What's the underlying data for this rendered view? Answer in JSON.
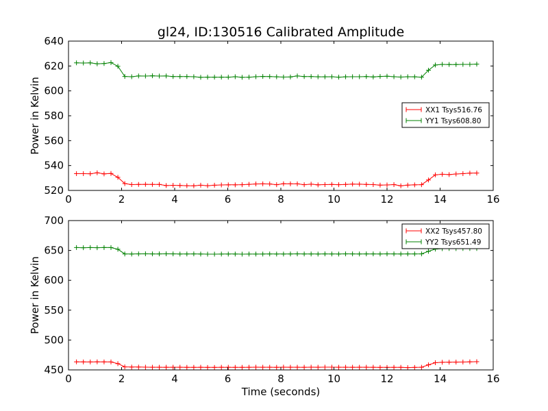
{
  "chart_data": {
    "type": "line",
    "title": "gl24, ID:130516 Calibrated Amplitude",
    "xlabel": "Time (seconds)",
    "x": [
      0.3,
      0.56,
      0.82,
      1.08,
      1.34,
      1.6,
      1.86,
      2.12,
      2.38,
      2.64,
      2.9,
      3.16,
      3.42,
      3.68,
      3.94,
      4.2,
      4.46,
      4.72,
      4.98,
      5.24,
      5.5,
      5.76,
      6.02,
      6.28,
      6.54,
      6.8,
      7.06,
      7.32,
      7.58,
      7.84,
      8.1,
      8.36,
      8.62,
      8.88,
      9.14,
      9.4,
      9.66,
      9.92,
      10.18,
      10.44,
      10.7,
      10.96,
      11.22,
      11.48,
      11.74,
      12.0,
      12.26,
      12.52,
      12.78,
      13.04,
      13.3,
      13.56,
      13.82,
      14.08,
      14.34,
      14.6,
      14.86,
      15.12,
      15.38
    ],
    "panels": [
      {
        "ylabel": "Power in Kelvin",
        "xlim": [
          0,
          16
        ],
        "ylim": [
          520,
          640
        ],
        "xticks": [
          0,
          2,
          4,
          6,
          8,
          10,
          12,
          14,
          16
        ],
        "yticks": [
          520,
          540,
          560,
          580,
          600,
          620,
          640
        ],
        "legend_position": "center-right",
        "series": [
          {
            "name": "XX1 Tsys516.76",
            "color": "#ff0000",
            "values": [
              533.5,
              533.5,
              533.4,
              534.2,
              533.3,
              533.6,
              530.5,
              525.5,
              524.7,
              524.8,
              524.9,
              524.8,
              524.8,
              523.9,
              524.1,
              524.0,
              523.8,
              523.7,
              524.2,
              523.8,
              524.2,
              524.4,
              524.5,
              524.5,
              524.6,
              524.9,
              525.2,
              525.3,
              525.2,
              524.6,
              525.4,
              525.3,
              525.3,
              524.6,
              525.0,
              524.5,
              524.7,
              524.8,
              524.6,
              524.8,
              525.1,
              525.0,
              524.8,
              524.7,
              524.3,
              524.4,
              524.7,
              523.7,
              524.3,
              524.5,
              524.6,
              528.4,
              532.5,
              533.0,
              532.7,
              533.2,
              533.5,
              533.9,
              534.0
            ]
          },
          {
            "name": "YY1 Tsys608.80",
            "color": "#008000",
            "values": [
              622.5,
              622.4,
              622.5,
              621.8,
              622.0,
              622.7,
              619.8,
              611.6,
              611.4,
              612.0,
              611.9,
              612.1,
              611.9,
              612.0,
              611.5,
              611.5,
              611.5,
              611.4,
              610.9,
              611.0,
              611.0,
              611.0,
              611.0,
              611.4,
              610.9,
              611.0,
              611.4,
              611.6,
              611.5,
              611.3,
              611.1,
              611.2,
              612.0,
              611.5,
              611.5,
              611.3,
              611.3,
              611.4,
              611.0,
              611.3,
              611.4,
              611.4,
              611.5,
              611.2,
              611.6,
              611.8,
              611.4,
              611.1,
              611.4,
              611.3,
              611.0,
              616.6,
              620.8,
              621.3,
              621.2,
              621.2,
              621.3,
              621.3,
              621.5
            ]
          }
        ]
      },
      {
        "ylabel": "Power in Kelvin",
        "xlim": [
          0,
          16
        ],
        "ylim": [
          450,
          700
        ],
        "xticks": [
          0,
          2,
          4,
          6,
          8,
          10,
          12,
          14,
          16
        ],
        "yticks": [
          450,
          500,
          550,
          600,
          650,
          700
        ],
        "legend_position": "top-right",
        "series": [
          {
            "name": "XX2 Tsys457.80",
            "color": "#ff0000",
            "values": [
              463.5,
              463.4,
              463.3,
              463.5,
              463.4,
              463.3,
              460.5,
              455.0,
              454.8,
              454.8,
              454.6,
              454.5,
              454.5,
              454.4,
              454.5,
              454.5,
              454.3,
              454.3,
              454.4,
              454.2,
              454.2,
              454.4,
              454.4,
              454.3,
              454.3,
              454.4,
              454.6,
              454.5,
              454.5,
              454.3,
              454.6,
              454.5,
              454.5,
              454.4,
              454.6,
              454.5,
              454.6,
              454.6,
              454.5,
              454.5,
              454.4,
              454.5,
              454.5,
              454.4,
              454.2,
              454.2,
              454.3,
              454.3,
              453.9,
              454.2,
              454.5,
              458.5,
              462.0,
              462.7,
              462.9,
              463.1,
              463.2,
              463.5,
              463.8
            ]
          },
          {
            "name": "YY2 Tsys651.49",
            "color": "#008000",
            "values": [
              654.8,
              654.5,
              654.8,
              654.6,
              654.9,
              654.8,
              652.0,
              644.1,
              644.0,
              644.3,
              644.4,
              644.2,
              644.2,
              644.4,
              644.3,
              644.0,
              644.1,
              644.2,
              644.0,
              643.8,
              643.8,
              643.9,
              644.0,
              644.0,
              643.8,
              643.9,
              643.9,
              644.0,
              644.1,
              644.0,
              644.0,
              644.1,
              644.3,
              644.1,
              644.1,
              644.0,
              644.2,
              644.1,
              644.0,
              644.3,
              644.2,
              644.1,
              644.2,
              644.2,
              644.1,
              644.3,
              644.2,
              644.1,
              644.2,
              644.2,
              644.3,
              648.5,
              652.3,
              653.0,
              653.2,
              653.1,
              653.2,
              653.2,
              653.3
            ]
          }
        ]
      }
    ]
  }
}
